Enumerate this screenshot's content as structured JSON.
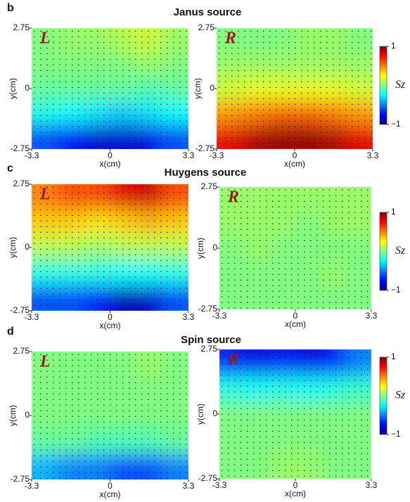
{
  "sections": [
    {
      "letter": "b",
      "title": "Janus source"
    },
    {
      "letter": "c",
      "title": "Huygens source"
    },
    {
      "letter": "d",
      "title": "Spin source"
    }
  ],
  "chart_data": [
    {
      "type": "heatmap",
      "tag": "L",
      "xlabel": "x(cm)",
      "ylabel": "y(cm)",
      "xlim": [
        -3.3,
        3.3
      ],
      "ylim": [
        -2.75,
        2.75
      ],
      "xticks": [
        -3.3,
        0,
        3.3
      ],
      "yticks": [
        -2.75,
        0,
        2.75
      ],
      "values": [
        [
          0,
          0.05,
          0.05,
          0.1,
          0.15,
          0.05
        ],
        [
          0,
          0,
          0,
          0,
          0.05,
          0
        ],
        [
          -0.05,
          -0.05,
          -0.05,
          -0.05,
          -0.1,
          -0.05
        ],
        [
          -0.2,
          -0.25,
          -0.3,
          -0.35,
          -0.3,
          -0.25
        ],
        [
          -0.6,
          -0.75,
          -0.85,
          -0.85,
          -0.8,
          -0.6
        ]
      ]
    },
    {
      "type": "heatmap",
      "tag": "R",
      "xlabel": "x(cm)",
      "ylabel": "y(cm)",
      "xlim": [
        -3.3,
        3.3
      ],
      "ylim": [
        -2.75,
        2.75
      ],
      "xticks": [
        -3.3,
        0,
        3.3
      ],
      "yticks": [
        -2.75,
        0,
        2.75
      ],
      "values": [
        [
          0,
          0,
          0,
          0.05,
          0.05,
          0
        ],
        [
          0.05,
          0.05,
          0.05,
          0.05,
          0.05,
          0.05
        ],
        [
          0.15,
          0.2,
          0.2,
          0.2,
          0.2,
          0.15
        ],
        [
          0.45,
          0.5,
          0.55,
          0.55,
          0.5,
          0.45
        ],
        [
          0.8,
          0.9,
          0.95,
          0.95,
          0.9,
          0.8
        ]
      ],
      "zlim": [
        -1,
        1
      ],
      "zticks": [
        {
          "value": 1,
          "label": "1"
        },
        {
          "value": -1,
          "label": "−1"
        }
      ],
      "colorbar_label": "Sz"
    },
    {
      "type": "heatmap",
      "tag": "L",
      "xlabel": "x(cm)",
      "ylabel": "y(cm)",
      "xlim": [
        -3.3,
        3.3
      ],
      "ylim": [
        -2.75,
        2.75
      ],
      "xticks": [
        -3.3,
        0,
        3.3
      ],
      "yticks": [
        -2.75,
        0,
        2.75
      ],
      "values": [
        [
          0.5,
          0.6,
          0.6,
          0.8,
          0.85,
          0.6
        ],
        [
          0.35,
          0.35,
          0.3,
          0.35,
          0.4,
          0.35
        ],
        [
          0.1,
          0.1,
          0.05,
          0.1,
          0.1,
          0.1
        ],
        [
          -0.2,
          -0.2,
          -0.2,
          -0.25,
          -0.25,
          -0.2
        ],
        [
          -0.6,
          -0.6,
          -0.7,
          -0.9,
          -0.85,
          -0.6
        ]
      ]
    },
    {
      "type": "heatmap",
      "tag": "R",
      "xlabel": "x(cm)",
      "ylabel": "y(cm)",
      "xlim": [
        -3.3,
        3.3
      ],
      "ylim": [
        -2.75,
        2.75
      ],
      "xticks": [
        -3.3,
        0,
        3.3
      ],
      "yticks": [
        -2.75,
        0,
        2.75
      ],
      "values": [
        [
          0.05,
          0.05,
          0.05,
          0.05,
          0.05,
          0.05
        ],
        [
          0.05,
          0.05,
          0.05,
          0,
          0.05,
          0.05
        ],
        [
          0,
          0.05,
          0,
          0,
          0,
          0
        ],
        [
          0,
          0,
          0,
          0,
          0.05,
          0
        ],
        [
          0,
          0,
          0,
          0,
          0,
          0
        ]
      ],
      "zlim": [
        -1,
        1
      ],
      "zticks": [
        {
          "value": 1,
          "label": "1"
        },
        {
          "value": -1,
          "label": "−1"
        }
      ],
      "colorbar_label": "Sz"
    },
    {
      "type": "heatmap",
      "tag": "L",
      "xlabel": "x(cm)",
      "ylabel": "y(cm)",
      "xlim": [
        -3.3,
        3.3
      ],
      "ylim": [
        -2.75,
        2.75
      ],
      "xticks": [
        -3.3,
        0,
        3.3
      ],
      "yticks": [
        -2.75,
        0,
        2.75
      ],
      "values": [
        [
          0,
          0,
          0,
          0,
          0.05,
          0
        ],
        [
          0,
          0,
          0,
          0,
          0,
          0
        ],
        [
          0,
          0,
          0,
          0,
          0,
          0
        ],
        [
          -0.05,
          -0.05,
          -0.1,
          -0.1,
          -0.1,
          -0.05
        ],
        [
          -0.4,
          -0.5,
          -0.5,
          -0.6,
          -0.6,
          -0.5
        ]
      ]
    },
    {
      "type": "heatmap",
      "tag": "R",
      "xlabel": "x(cm)",
      "ylabel": "y(cm)",
      "xlim": [
        -3.3,
        3.3
      ],
      "ylim": [
        -2.75,
        2.75
      ],
      "xticks": [
        -3.3,
        0,
        3.3
      ],
      "yticks": [
        -2.75,
        0,
        2.75
      ],
      "values": [
        [
          -0.7,
          -0.8,
          -0.7,
          -0.8,
          -0.7,
          -0.5
        ],
        [
          -0.2,
          -0.25,
          -0.2,
          -0.25,
          -0.2,
          -0.15
        ],
        [
          0,
          0,
          0,
          0,
          0,
          0
        ],
        [
          0,
          0,
          0,
          0,
          0,
          0
        ],
        [
          0,
          0,
          0.05,
          0.05,
          0,
          0
        ]
      ],
      "zlim": [
        -1,
        1
      ],
      "zticks": [
        {
          "value": 1,
          "label": "1"
        },
        {
          "value": -1,
          "label": "−1"
        }
      ],
      "colorbar_label": "Sz"
    }
  ]
}
